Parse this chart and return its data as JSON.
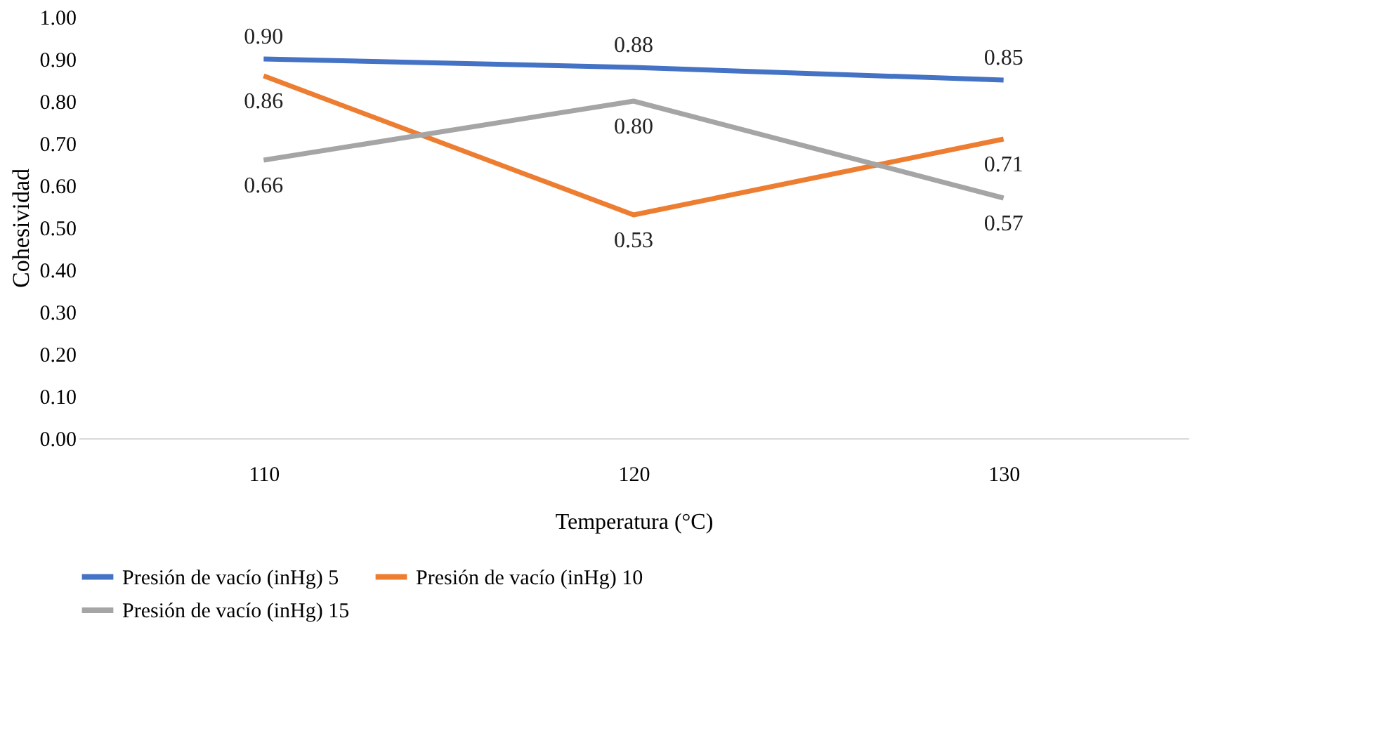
{
  "chart_data": {
    "type": "line",
    "xlabel": "Temperatura (°C)",
    "ylabel": "Cohesividad",
    "categories": [
      "110",
      "120",
      "130"
    ],
    "series": [
      {
        "name": "Presión de vacío (inHg) 5",
        "color": "#4472c4",
        "values": [
          0.9,
          0.88,
          0.85
        ],
        "value_labels": [
          "0.90",
          "0.88",
          "0.85"
        ]
      },
      {
        "name": "Presión de vacío (inHg) 10",
        "color": "#ed7d31",
        "values": [
          0.86,
          0.53,
          0.71
        ],
        "value_labels": [
          "0.86",
          "0.53",
          "0.71"
        ]
      },
      {
        "name": "Presión de vacío (inHg) 15",
        "color": "#a5a5a5",
        "values": [
          0.66,
          0.8,
          0.57
        ],
        "value_labels": [
          "0.66",
          "0.80",
          "0.57"
        ]
      }
    ],
    "ylim": [
      0,
      1
    ],
    "yticks": [
      {
        "value": 0,
        "label": "0.00"
      },
      {
        "value": 0.1,
        "label": "0.10"
      },
      {
        "value": 0.2,
        "label": "0.20"
      },
      {
        "value": 0.3,
        "label": "0.30"
      },
      {
        "value": 0.4,
        "label": "0.40"
      },
      {
        "value": 0.5,
        "label": "0.50"
      },
      {
        "value": 0.6,
        "label": "0.60"
      },
      {
        "value": 0.7,
        "label": "0.70"
      },
      {
        "value": 0.8,
        "label": "0.80"
      },
      {
        "value": 0.9,
        "label": "0.90"
      },
      {
        "value": 1.0,
        "label": "1.00"
      }
    ],
    "grid": false,
    "legend": "bottom",
    "marker": "none",
    "line_style": "solid"
  }
}
